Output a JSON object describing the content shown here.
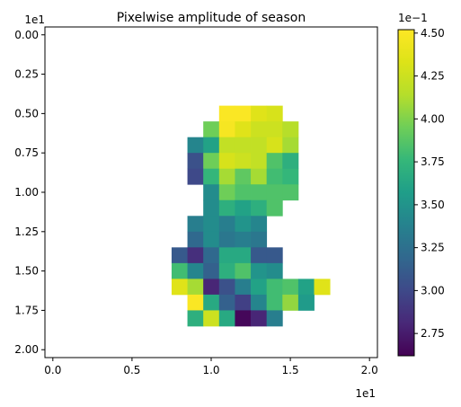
{
  "chart_data": {
    "type": "heatmap",
    "title": "Pixelwise amplitude of season",
    "colormap": "viridis",
    "xlim": [
      -0.5,
      20.5
    ],
    "ylim": [
      20.5,
      -0.5
    ],
    "x_ticks": [
      0.0,
      0.5,
      1.0,
      1.5,
      2.0
    ],
    "y_ticks": [
      0.0,
      0.25,
      0.5,
      0.75,
      1.0,
      1.25,
      1.5,
      1.75,
      2.0
    ],
    "x_tick_labels": [
      "0.0",
      "0.5",
      "1.0",
      "1.5",
      "2.0"
    ],
    "y_tick_labels": [
      "0.00",
      "0.25",
      "0.50",
      "0.75",
      "1.00",
      "1.25",
      "1.50",
      "1.75",
      "2.00"
    ],
    "x_offset_label": "1e1",
    "y_offset_label": "1e1",
    "colorbar": {
      "min": 2.62,
      "max": 4.52,
      "ticks": [
        2.75,
        3.0,
        3.25,
        3.5,
        3.75,
        4.0,
        4.25,
        4.5
      ],
      "tick_labels": [
        "2.75",
        "3.00",
        "3.25",
        "3.50",
        "3.75",
        "4.00",
        "4.25",
        "4.50"
      ],
      "offset_label": "1e−1"
    },
    "row_start": 5,
    "rows": [
      {
        "col_start": 11,
        "values": [
          4.5,
          4.5,
          4.35,
          4.3,
          null,
          null
        ]
      },
      {
        "col_start": 10,
        "values": [
          3.95,
          4.48,
          4.35,
          4.25,
          4.25,
          4.15
        ]
      },
      {
        "col_start": 9,
        "values": [
          3.4,
          3.6,
          4.2,
          4.2,
          4.2,
          4.3,
          4.1
        ]
      },
      {
        "col_start": 9,
        "values": [
          3.05,
          3.95,
          4.3,
          4.25,
          4.2,
          3.85,
          3.7
        ]
      },
      {
        "col_start": 9,
        "values": [
          3.0,
          3.75,
          4.1,
          3.9,
          4.1,
          3.8,
          3.75
        ]
      },
      {
        "col_start": 10,
        "values": [
          3.45,
          3.95,
          3.85,
          3.85,
          3.85,
          3.85
        ]
      },
      {
        "col_start": 10,
        "values": [
          3.45,
          3.7,
          3.6,
          3.7,
          3.85
        ]
      },
      {
        "col_start": 9,
        "values": [
          3.35,
          3.45,
          3.35,
          3.5,
          3.4
        ]
      },
      {
        "col_start": 9,
        "values": [
          3.2,
          3.45,
          3.3,
          3.35,
          3.3
        ]
      },
      {
        "col_start": 8,
        "values": [
          3.1,
          2.85,
          3.2,
          3.65,
          3.65,
          3.1,
          3.1
        ]
      },
      {
        "col_start": 8,
        "values": [
          3.8,
          3.4,
          3.15,
          3.7,
          3.85,
          3.5,
          3.45
        ]
      },
      {
        "col_start": 8,
        "values": [
          4.35,
          4.1,
          2.8,
          3.05,
          3.35,
          3.6,
          3.8,
          3.85,
          3.6,
          4.35
        ]
      },
      {
        "col_start": 9,
        "values": [
          4.5,
          3.65,
          3.15,
          2.95,
          3.4,
          3.8,
          4.05,
          3.55
        ]
      },
      {
        "col_start": 9,
        "values": [
          3.7,
          4.25,
          3.65,
          2.65,
          2.8,
          3.35
        ]
      }
    ]
  }
}
